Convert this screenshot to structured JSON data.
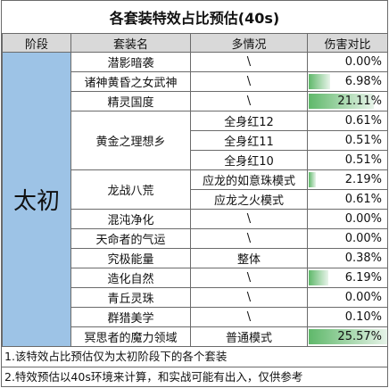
{
  "title": "各套装特效占比预估(40s)",
  "headers": [
    "阶段",
    "套装名",
    "多情况",
    "伤害对比"
  ],
  "stage": "太初",
  "rows": [
    {
      "name": "潜影暗袭",
      "case": "\\",
      "ratio": "0.00%",
      "bar": 0
    },
    {
      "name": "诸神黄昏之女武神",
      "case": "\\",
      "ratio": "6.98%",
      "bar": 0.273
    },
    {
      "name": "精灵国度",
      "case": "\\",
      "ratio": "21.11%",
      "bar": 0.8256
    },
    {
      "name": "黄金之理想乡",
      "case": "全身红12",
      "ratio": "0.61%",
      "bar": 0
    },
    {
      "name": "",
      "case": "全身红11",
      "ratio": "0.51%",
      "bar": 0
    },
    {
      "name": "",
      "case": "全身红10",
      "ratio": "0.51%",
      "bar": 0
    },
    {
      "name": "龙战八荒",
      "case": "应龙的如意珠模式",
      "ratio": "2.19%",
      "bar": 0.0856
    },
    {
      "name": "",
      "case": "应龙之火模式",
      "ratio": "0.61%",
      "bar": 0
    },
    {
      "name": "混沌净化",
      "case": "\\",
      "ratio": "0.00%",
      "bar": 0
    },
    {
      "name": "天命者的气运",
      "case": "\\",
      "ratio": "0.00%",
      "bar": 0
    },
    {
      "name": "究极能量",
      "case": "整体",
      "ratio": "0.38%",
      "bar": 0
    },
    {
      "name": "造化自然",
      "case": "\\",
      "ratio": "6.19%",
      "bar": 0.2421
    },
    {
      "name": "青丘灵珠",
      "case": "\\",
      "ratio": "0.00%",
      "bar": 0
    },
    {
      "name": "群猎美学",
      "case": "\\",
      "ratio": "0.10%",
      "bar": 0
    },
    {
      "name": "冥思者的魔力领域",
      "case": "普通模式",
      "ratio": "25.57%",
      "bar": 1.0
    }
  ],
  "notes": [
    "1.该特效占比预估仅为太初阶段下的各个套装",
    "2.特效预估以40s环境来计算，和实战可能有出入，仅供参考"
  ]
}
